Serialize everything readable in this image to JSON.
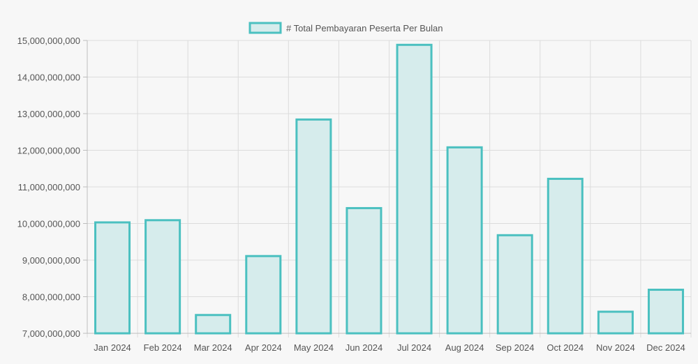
{
  "chart_data": {
    "type": "bar",
    "legend": {
      "label": "# Total Pembayaran Peserta Per Bulan",
      "position": "top-center"
    },
    "categories": [
      "Jan 2024",
      "Feb 2024",
      "Mar 2024",
      "Apr 2024",
      "May 2024",
      "Jun 2024",
      "Jul 2024",
      "Aug 2024",
      "Sep 2024",
      "Oct 2024",
      "Nov 2024",
      "Dec 2024"
    ],
    "series": [
      {
        "name": "# Total Pembayaran Peserta Per Bulan",
        "values": [
          10030000000,
          10090000000,
          7500000000,
          9110000000,
          12840000000,
          10420000000,
          14880000000,
          12080000000,
          9680000000,
          11220000000,
          7590000000,
          8190000000
        ],
        "fill_color": "#d6ecec",
        "border_color": "#4bc0c0"
      }
    ],
    "ylim": [
      7000000000,
      15000000000
    ],
    "y_ticks": [
      "7,000,000,000",
      "8,000,000,000",
      "9,000,000,000",
      "10,000,000,000",
      "11,000,000,000",
      "12,000,000,000",
      "13,000,000,000",
      "14,000,000,000",
      "15,000,000,000"
    ],
    "grid": true,
    "xlabel": "",
    "ylabel": ""
  }
}
